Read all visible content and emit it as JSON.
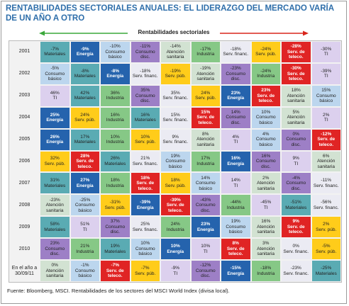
{
  "title": "RENTABILIDADES SECTORIALES ANUALES: EL LIDERAZGO DEL MERCADO VARÍA DE UN AÑO A OTRO",
  "header_label": "Rentabilidades sectoriales",
  "rows": [
    {
      "year": "2001",
      "cells": [
        {
          "value": "-7%",
          "sector": "Materiales",
          "color": "#5aabb3"
        },
        {
          "value": "-9%",
          "sector": "Energía",
          "color": "#2563ad"
        },
        {
          "value": "-10%",
          "sector": "Consumo básico",
          "color": "#bcd6ee"
        },
        {
          "value": "-11%",
          "sector": "Consumo disc.",
          "color": "#9d7fc6"
        },
        {
          "value": "-14%",
          "sector": "Atención sanitaria",
          "color": "#d2e2d2"
        },
        {
          "value": "-17%",
          "sector": "Industria",
          "color": "#86c886"
        },
        {
          "value": "-18%",
          "sector": "Serv. financ.",
          "color": "#ebebf3"
        },
        {
          "value": "-24%",
          "sector": "Serv. púb.",
          "color": "#ffcc1a"
        },
        {
          "value": "-28%",
          "sector": "Serv. de teleco.",
          "color": "#e02424"
        },
        {
          "value": "-30%",
          "sector": "TI",
          "color": "#dcd0ee"
        }
      ]
    },
    {
      "year": "2002",
      "cells": [
        {
          "value": "-5%",
          "sector": "Consumo básico",
          "color": "#bcd6ee"
        },
        {
          "value": "-8%",
          "sector": "Materiales",
          "color": "#5aabb3"
        },
        {
          "value": "-8%",
          "sector": "Energía",
          "color": "#2563ad"
        },
        {
          "value": "-18%",
          "sector": "Serv. financ.",
          "color": "#ebebf3"
        },
        {
          "value": "-19%",
          "sector": "Serv. púb.",
          "color": "#ffcc1a"
        },
        {
          "value": "-19%",
          "sector": "Atención sanitaria",
          "color": "#d2e2d2"
        },
        {
          "value": "-23%",
          "sector": "Consumo disc.",
          "color": "#9d7fc6"
        },
        {
          "value": "-24%",
          "sector": "Industria",
          "color": "#86c886"
        },
        {
          "value": "-30%",
          "sector": "Serv. de teleco.",
          "color": "#e02424"
        },
        {
          "value": "-39%",
          "sector": "TI",
          "color": "#dcd0ee"
        }
      ]
    },
    {
      "year": "2003",
      "cells": [
        {
          "value": "46%",
          "sector": "TI",
          "color": "#dcd0ee"
        },
        {
          "value": "42%",
          "sector": "Materiales",
          "color": "#5aabb3"
        },
        {
          "value": "36%",
          "sector": "Industria",
          "color": "#86c886"
        },
        {
          "value": "35%",
          "sector": "Consumo disc.",
          "color": "#9d7fc6"
        },
        {
          "value": "35%",
          "sector": "Serv. financ.",
          "color": "#ebebf3"
        },
        {
          "value": "24%",
          "sector": "Serv. púb.",
          "color": "#ffcc1a"
        },
        {
          "value": "23%",
          "sector": "Energía",
          "color": "#2563ad"
        },
        {
          "value": "23%",
          "sector": "Serv. de teleco.",
          "color": "#e02424"
        },
        {
          "value": "18%",
          "sector": "Atención sanitaria",
          "color": "#d2e2d2"
        },
        {
          "value": "15%",
          "sector": "Consumo básico",
          "color": "#bcd6ee"
        }
      ]
    },
    {
      "year": "2004",
      "cells": [
        {
          "value": "25%",
          "sector": "Energía",
          "color": "#2563ad"
        },
        {
          "value": "24%",
          "sector": "Serv. púb.",
          "color": "#ffcc1a"
        },
        {
          "value": "16%",
          "sector": "Industria",
          "color": "#86c886"
        },
        {
          "value": "16%",
          "sector": "Materiales",
          "color": "#5aabb3"
        },
        {
          "value": "15%",
          "sector": "Serv. financ.",
          "color": "#ebebf3"
        },
        {
          "value": "15%",
          "sector": "Serv. de teleco.",
          "color": "#e02424"
        },
        {
          "value": "14%",
          "sector": "Consumo disc.",
          "color": "#9d7fc6"
        },
        {
          "value": "10%",
          "sector": "Consumo básico",
          "color": "#bcd6ee"
        },
        {
          "value": "5%",
          "sector": "Atención sanitaria",
          "color": "#d2e2d2"
        },
        {
          "value": "2%",
          "sector": "TI",
          "color": "#dcd0ee"
        }
      ]
    },
    {
      "year": "2005",
      "cells": [
        {
          "value": "26%",
          "sector": "Energía",
          "color": "#2563ad"
        },
        {
          "value": "17%",
          "sector": "Materiales",
          "color": "#5aabb3"
        },
        {
          "value": "10%",
          "sector": "Industria",
          "color": "#86c886"
        },
        {
          "value": "10%",
          "sector": "Serv. púb.",
          "color": "#ffcc1a"
        },
        {
          "value": "9%",
          "sector": "Serv. financ.",
          "color": "#ebebf3"
        },
        {
          "value": "8%",
          "sector": "Atención sanitaria",
          "color": "#d2e2d2"
        },
        {
          "value": "4%",
          "sector": "TI",
          "color": "#dcd0ee"
        },
        {
          "value": "4%",
          "sector": "Consumo básico",
          "color": "#bcd6ee"
        },
        {
          "value": "0%",
          "sector": "Consumo disc.",
          "color": "#9d7fc6"
        },
        {
          "value": "-12%",
          "sector": "Serv. de teleco.",
          "color": "#e02424"
        }
      ]
    },
    {
      "year": "2006",
      "cells": [
        {
          "value": "32%",
          "sector": "Serv. púb.",
          "color": "#ffcc1a"
        },
        {
          "value": "28%",
          "sector": "Serv. de teleco.",
          "color": "#e02424"
        },
        {
          "value": "26%",
          "sector": "Materiales",
          "color": "#5aabb3"
        },
        {
          "value": "21%",
          "sector": "Serv. financ.",
          "color": "#ebebf3"
        },
        {
          "value": "19%",
          "sector": "Consumo básico",
          "color": "#bcd6ee"
        },
        {
          "value": "17%",
          "sector": "Industria",
          "color": "#86c886"
        },
        {
          "value": "16%",
          "sector": "Energía",
          "color": "#2563ad"
        },
        {
          "value": "16%",
          "sector": "Consumo disc.",
          "color": "#9d7fc6"
        },
        {
          "value": "9%",
          "sector": "TI",
          "color": "#dcd0ee"
        },
        {
          "value": "6%",
          "sector": "Atención sanitaria",
          "color": "#d2e2d2"
        }
      ]
    },
    {
      "year": "2007",
      "cells": [
        {
          "value": "31%",
          "sector": "Materiales",
          "color": "#5aabb3"
        },
        {
          "value": "27%",
          "sector": "Energía",
          "color": "#2563ad"
        },
        {
          "value": "18%",
          "sector": "Industria",
          "color": "#86c886"
        },
        {
          "value": "18%",
          "sector": "Serv. de teleco.",
          "color": "#e02424"
        },
        {
          "value": "18%",
          "sector": "Serv. púb.",
          "color": "#ffcc1a"
        },
        {
          "value": "14%",
          "sector": "Consumo básico",
          "color": "#bcd6ee"
        },
        {
          "value": "14%",
          "sector": "TI",
          "color": "#dcd0ee"
        },
        {
          "value": "2%",
          "sector": "Atención sanitaria",
          "color": "#d2e2d2"
        },
        {
          "value": "-4%",
          "sector": "Consumo disc.",
          "color": "#9d7fc6"
        },
        {
          "value": "-11%",
          "sector": "Serv. financ.",
          "color": "#ebebf3"
        }
      ]
    },
    {
      "year": "2008",
      "cells": [
        {
          "value": "-23%",
          "sector": "Atención sanitaria",
          "color": "#d2e2d2"
        },
        {
          "value": "-25%",
          "sector": "Consumo básico",
          "color": "#bcd6ee"
        },
        {
          "value": "-31%",
          "sector": "Serv. púb.",
          "color": "#ffcc1a"
        },
        {
          "value": "-39%",
          "sector": "Energía",
          "color": "#2563ad"
        },
        {
          "value": "-39%",
          "sector": "Serv. de teleco.",
          "color": "#e02424"
        },
        {
          "value": "-43%",
          "sector": "Consumo disc.",
          "color": "#9d7fc6"
        },
        {
          "value": "-44%",
          "sector": "Industria",
          "color": "#86c886"
        },
        {
          "value": "-45%",
          "sector": "TI",
          "color": "#dcd0ee"
        },
        {
          "value": "-51%",
          "sector": "Materiales",
          "color": "#5aabb3"
        },
        {
          "value": "-56%",
          "sector": "Serv. financ.",
          "color": "#ebebf3"
        }
      ]
    },
    {
      "year": "2009",
      "cells": [
        {
          "value": "58%",
          "sector": "Materiales",
          "color": "#5aabb3"
        },
        {
          "value": "51%",
          "sector": "TI",
          "color": "#dcd0ee"
        },
        {
          "value": "37%",
          "sector": "Consumo disc.",
          "color": "#9d7fc6"
        },
        {
          "value": "25%",
          "sector": "Serv. financ.",
          "color": "#ebebf3"
        },
        {
          "value": "24%",
          "sector": "Industria",
          "color": "#86c886"
        },
        {
          "value": "23%",
          "sector": "Energía",
          "color": "#2563ad"
        },
        {
          "value": "19%",
          "sector": "Consumo básico",
          "color": "#bcd6ee"
        },
        {
          "value": "16%",
          "sector": "Atención sanitaria",
          "color": "#d2e2d2"
        },
        {
          "value": "9%",
          "sector": "Serv. de teleco.",
          "color": "#e02424"
        },
        {
          "value": "2%",
          "sector": "Serv. púb.",
          "color": "#ffcc1a"
        }
      ]
    },
    {
      "year": "2010",
      "cells": [
        {
          "value": "23%",
          "sector": "Consumo disc.",
          "color": "#9d7fc6"
        },
        {
          "value": "21%",
          "sector": "Industria",
          "color": "#86c886"
        },
        {
          "value": "19%",
          "sector": "Materiales",
          "color": "#5aabb3"
        },
        {
          "value": "10%",
          "sector": "Consumo básico",
          "color": "#bcd6ee"
        },
        {
          "value": "10%",
          "sector": "Energía",
          "color": "#2563ad"
        },
        {
          "value": "10%",
          "sector": "TI",
          "color": "#dcd0ee"
        },
        {
          "value": "8%",
          "sector": "Serv. de teleco.",
          "color": "#e02424"
        },
        {
          "value": "3%",
          "sector": "Atención sanitaria",
          "color": "#d2e2d2"
        },
        {
          "value": "0%",
          "sector": "Serv. financ.",
          "color": "#ebebf3"
        },
        {
          "value": "-5%",
          "sector": "Serv. púb.",
          "color": "#ffcc1a"
        }
      ]
    },
    {
      "year": "En el año a 30/09/11",
      "cells": [
        {
          "value": "0%",
          "sector": "Atención sanitaria",
          "color": "#d2e2d2"
        },
        {
          "value": "-1%",
          "sector": "Consumo básico",
          "color": "#bcd6ee"
        },
        {
          "value": "-7%",
          "sector": "Serv. de teleco.",
          "color": "#e02424"
        },
        {
          "value": "-7%",
          "sector": "Serv. púb.",
          "color": "#ffcc1a"
        },
        {
          "value": "-9%",
          "sector": "TI",
          "color": "#dcd0ee"
        },
        {
          "value": "-12%",
          "sector": "Consumo disc.",
          "color": "#9d7fc6"
        },
        {
          "value": "-15%",
          "sector": "Energía",
          "color": "#2563ad"
        },
        {
          "value": "-18%",
          "sector": "Industria",
          "color": "#86c886"
        },
        {
          "value": "-23%",
          "sector": "Serv. financ.",
          "color": "#ebebf3"
        },
        {
          "value": "-25%",
          "sector": "Materiales",
          "color": "#5aabb3"
        }
      ]
    }
  ],
  "footer": "Fuente: Bloomberg, MSCI. Rentabilidades de los sectores del MSCI World Index (divisa local)."
}
